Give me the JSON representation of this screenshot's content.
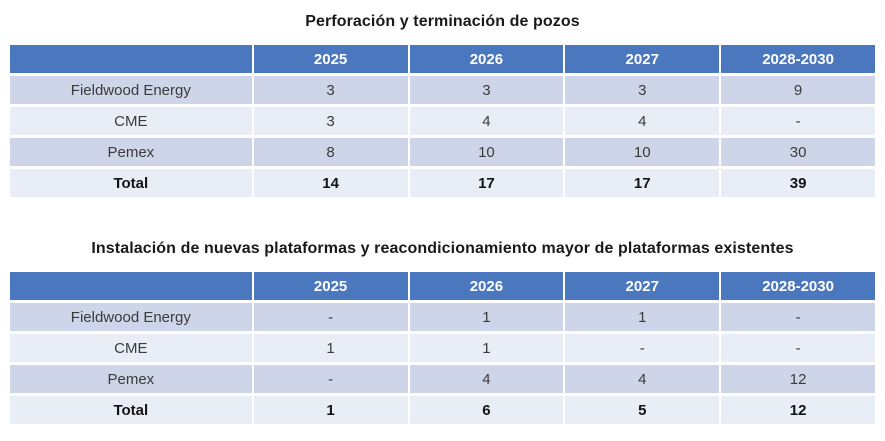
{
  "colors": {
    "header_blue": "#4a77be",
    "band_dark": "#cfd5e9",
    "band_light": "#e9edf6",
    "page_background": "#ffffff"
  },
  "tables": [
    {
      "title": "Perforación y terminación de pozos",
      "columns": [
        "",
        "2025",
        "2026",
        "2027",
        "2028-2030"
      ],
      "rows": [
        {
          "label": "Fieldwood Energy",
          "values": [
            "3",
            "3",
            "3",
            "9"
          ]
        },
        {
          "label": "CME",
          "values": [
            "3",
            "4",
            "4",
            "-"
          ]
        },
        {
          "label": "Pemex",
          "values": [
            "8",
            "10",
            "10",
            "30"
          ]
        },
        {
          "label": "Total",
          "values": [
            "14",
            "17",
            "17",
            "39"
          ]
        }
      ]
    },
    {
      "title": "Instalación de nuevas plataformas y reacondicionamiento mayor de plataformas existentes",
      "columns": [
        "",
        "2025",
        "2026",
        "2027",
        "2028-2030"
      ],
      "rows": [
        {
          "label": "Fieldwood Energy",
          "values": [
            "-",
            "1",
            "1",
            "-"
          ]
        },
        {
          "label": "CME",
          "values": [
            "1",
            "1",
            "-",
            "-"
          ]
        },
        {
          "label": "Pemex",
          "values": [
            "-",
            "4",
            "4",
            "12"
          ]
        },
        {
          "label": "Total",
          "values": [
            "1",
            "6",
            "5",
            "12"
          ]
        }
      ]
    }
  ]
}
